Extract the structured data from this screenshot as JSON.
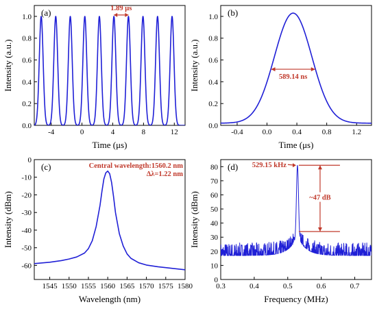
{
  "chart_data": [
    {
      "id": "a",
      "type": "line",
      "panel_label": "(a)",
      "xlabel": "Time (μs)",
      "ylabel": "Intensity (a.u.)",
      "xlim": [
        -6.2,
        13.4
      ],
      "ylim": [
        0,
        1.1
      ],
      "xticks": [
        -4,
        0,
        4,
        8,
        12
      ],
      "xtick_labels": [
        "-4",
        "0",
        "4",
        "8",
        "12"
      ],
      "yticks": [
        0,
        0.2,
        0.4,
        0.6,
        0.8,
        1.0
      ],
      "ytick_labels": [
        "0.0",
        "0.2",
        "0.4",
        "0.6",
        "0.8",
        "1.0"
      ],
      "series": [
        {
          "pulse_centers": [
            -5.3,
            -3.41,
            -1.52,
            0.37,
            2.26,
            4.15,
            6.04,
            7.93,
            9.82,
            11.71
          ],
          "pulse_fwhm": 0.589,
          "peak": 1.0
        }
      ],
      "annotation": {
        "text": "1.89 μs",
        "x1": 4.15,
        "x2": 6.04,
        "y": 1.0
      }
    },
    {
      "id": "b",
      "type": "line",
      "panel_label": "(b)",
      "xlabel": "Time (μs)",
      "ylabel": "Intensity (a.u.)",
      "xlim": [
        -0.62,
        1.4
      ],
      "ylim": [
        0,
        1.1
      ],
      "xticks": [
        -0.4,
        0,
        0.4,
        0.8,
        1.2
      ],
      "xtick_labels": [
        "-0.4",
        "0.0",
        "0.4",
        "0.8",
        "1.2"
      ],
      "yticks": [
        0,
        0.2,
        0.4,
        0.6,
        0.8,
        1.0
      ],
      "ytick_labels": [
        "0.0",
        "0.2",
        "0.4",
        "0.6",
        "0.8",
        "1.0"
      ],
      "series": [
        {
          "center": 0.35,
          "fwhm": 0.589,
          "peak": 1.03
        }
      ],
      "annotation": {
        "text": "589.14 ns",
        "x1": 0.055,
        "x2": 0.645,
        "y": 0.515
      }
    },
    {
      "id": "c",
      "type": "line",
      "panel_label": "(c)",
      "xlabel": "Wavelength (nm)",
      "ylabel": "Intensity (dBm)",
      "xlim": [
        1541,
        1580
      ],
      "ylim": [
        -68,
        0
      ],
      "xticks": [
        1545,
        1550,
        1555,
        1560,
        1565,
        1570,
        1575,
        1580
      ],
      "xtick_labels": [
        "1545",
        "1550",
        "1555",
        "1560",
        "1565",
        "1570",
        "1575",
        "1580"
      ],
      "yticks": [
        -60,
        -50,
        -40,
        -30,
        -20,
        -10,
        0
      ],
      "ytick_labels": [
        "-60",
        "-50",
        "-40",
        "-30",
        "-20",
        "-10",
        "0"
      ],
      "series": [
        {
          "x": [
            1541,
            1545,
            1548,
            1550,
            1552,
            1554,
            1555,
            1556,
            1557,
            1558,
            1558.5,
            1559,
            1559.5,
            1560,
            1560.5,
            1561,
            1561.5,
            1562,
            1563,
            1564,
            1565,
            1566,
            1568,
            1570,
            1573,
            1576,
            1580
          ],
          "y": [
            -59,
            -58.2,
            -57.3,
            -56.4,
            -55.2,
            -53,
            -50.5,
            -46,
            -38,
            -26,
            -18,
            -11,
            -7.5,
            -6.5,
            -8,
            -13,
            -21,
            -30,
            -42,
            -49,
            -53.5,
            -56,
            -58.5,
            -59.8,
            -60.8,
            -61.5,
            -62.5
          ]
        }
      ],
      "annotation": {
        "line1": "Central wavelength:1560.2 nm",
        "line2": "Δλ=1.22 nm"
      }
    },
    {
      "id": "d",
      "type": "line",
      "panel_label": "(d)",
      "xlabel": "Frequency (MHz)",
      "ylabel": "Intensity (dBm)",
      "xlim": [
        0.3,
        0.75
      ],
      "ylim": [
        0,
        85
      ],
      "xticks": [
        0.3,
        0.4,
        0.5,
        0.6,
        0.7
      ],
      "xtick_labels": [
        "0.3",
        "0.4",
        "0.5",
        "0.6",
        "0.7"
      ],
      "yticks": [
        0,
        10,
        20,
        30,
        40,
        50,
        60,
        70,
        80
      ],
      "ytick_labels": [
        "0",
        "10",
        "20",
        "30",
        "40",
        "50",
        "60",
        "70",
        "80"
      ],
      "series": [
        {
          "peak_x": 0.529,
          "peak_y": 81,
          "noise_floor": 17,
          "noise_amplitude": 9
        }
      ],
      "annotation": {
        "peak_text": "529.15 kHz",
        "range_text": "~47 dB",
        "top": 81,
        "bottom": 34
      }
    }
  ]
}
